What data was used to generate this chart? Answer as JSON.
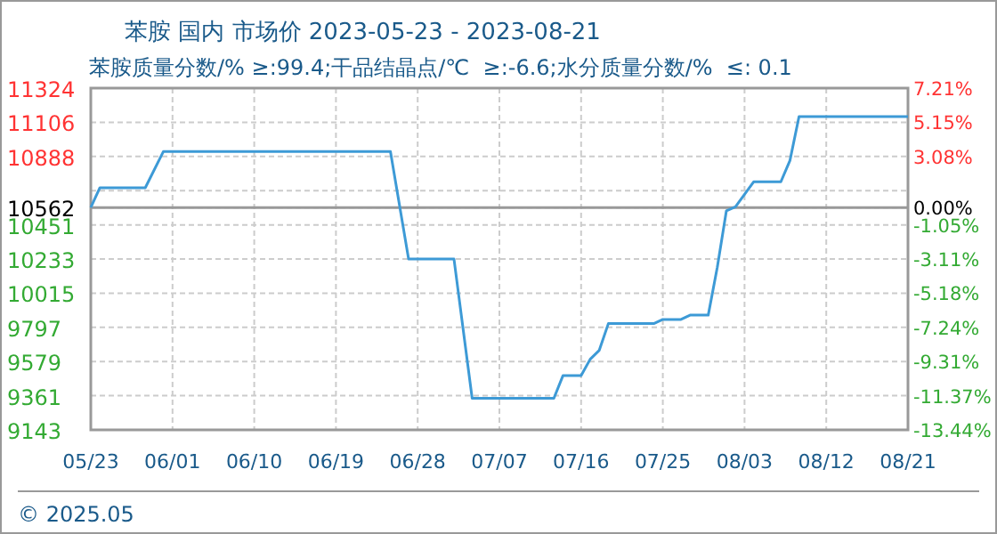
{
  "chart_data": {
    "type": "line",
    "title": "苯胺 国内 市场价 2023-05-23 - 2023-08-21",
    "subtitle": "苯胺质量分数/% ≥:99.4;干品结晶点/℃  ≥:-6.6;水分质量分数/%  ≤: 0.1",
    "x": [
      "2023-05-23",
      "2023-05-24",
      "2023-05-29",
      "2023-05-31",
      "2023-06-25",
      "2023-06-27",
      "2023-07-02",
      "2023-07-04",
      "2023-07-13",
      "2023-07-14",
      "2023-07-16",
      "2023-07-17",
      "2023-07-18",
      "2023-07-19",
      "2023-07-24",
      "2023-07-25",
      "2023-07-27",
      "2023-07-28",
      "2023-07-30",
      "2023-07-31",
      "2023-08-01",
      "2023-08-02",
      "2023-08-04",
      "2023-08-07",
      "2023-08-08",
      "2023-08-09",
      "2023-08-21"
    ],
    "series": [
      {
        "color": "#3d9ad6",
        "values": [
          10562,
          10688,
          10688,
          10920,
          10920,
          10233,
          10233,
          9345,
          9345,
          9489,
          9489,
          9594,
          9651,
          9821,
          9821,
          9848,
          9848,
          9875,
          9875,
          10181,
          10541,
          10567,
          10726,
          10726,
          10862,
          11142,
          11142
        ]
      }
    ],
    "xlim": [
      "2023-05-23",
      "2023-08-21"
    ],
    "xticks": [
      {
        "value": "2023-05-23",
        "label": "05/23"
      },
      {
        "value": "2023-06-01",
        "label": "06/01"
      },
      {
        "value": "2023-06-10",
        "label": "06/10"
      },
      {
        "value": "2023-06-19",
        "label": "06/19"
      },
      {
        "value": "2023-06-28",
        "label": "06/28"
      },
      {
        "value": "2023-07-07",
        "label": "07/07"
      },
      {
        "value": "2023-07-16",
        "label": "07/16"
      },
      {
        "value": "2023-07-25",
        "label": "07/25"
      },
      {
        "value": "2023-08-03",
        "label": "08/03"
      },
      {
        "value": "2023-08-12",
        "label": "08/12"
      },
      {
        "value": "2023-08-21",
        "label": "08/21"
      }
    ],
    "ylim": [
      9143,
      11324
    ],
    "yticks": [
      11324,
      11106,
      10888,
      {
        "value": 10670,
        "label": null
      },
      10562,
      10451,
      10233,
      10015,
      9797,
      9579,
      9361,
      9143
    ],
    "y2lim": [
      -13.44,
      7.21
    ],
    "y2ticks": [
      {
        "value": 7.21,
        "label": "7.21%"
      },
      {
        "value": 5.15,
        "label": "5.15%"
      },
      {
        "value": 3.08,
        "label": "3.08%"
      },
      {
        "value": 0,
        "label": "0.00%"
      },
      {
        "value": -1.05,
        "label": "-1.05%"
      },
      {
        "value": -3.11,
        "label": "-3.11%"
      },
      {
        "value": -5.18,
        "label": "-5.18%"
      },
      {
        "value": -7.24,
        "label": "-7.24%"
      },
      {
        "value": -9.31,
        "label": "-9.31%"
      },
      {
        "value": -11.37,
        "label": "-11.37%"
      },
      {
        "value": -13.44,
        "label": "-13.44%"
      }
    ],
    "ref_lines": [
      {
        "axis": "y",
        "value": 10562,
        "color": "#999999"
      }
    ],
    "grid": true,
    "annotations": [
      "© 2025.05"
    ]
  }
}
